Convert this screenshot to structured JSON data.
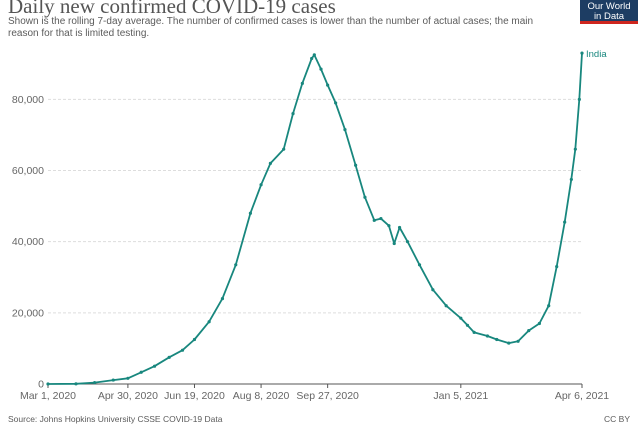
{
  "header": {
    "title": "Daily new confirmed COVID-19 cases",
    "subtitle": "Shown is the rolling 7-day average. The number of confirmed cases is lower than the number of actual cases; the main reason for that is limited testing."
  },
  "logo": {
    "line1": "Our World",
    "line2": "in Data"
  },
  "footer": {
    "source": "Source: Johns Hopkins University CSSE COVID-19 Data",
    "license": "CC BY"
  },
  "colors": {
    "series": "#18877e",
    "grid": "#dddddd",
    "axis": "#555555",
    "text": "#666666"
  },
  "chart_data": {
    "type": "line",
    "title": "Daily new confirmed COVID-19 cases",
    "xlabel": "",
    "ylabel": "",
    "x_start": "2020-03-01",
    "x_end": "2021-04-06",
    "ylim": [
      0,
      95000
    ],
    "y_ticks": [
      0,
      20000,
      40000,
      60000,
      80000
    ],
    "y_tick_labels": [
      "0",
      "20,000",
      "40,000",
      "60,000",
      "80,000"
    ],
    "x_ticks": [
      "2020-03-01",
      "2020-04-30",
      "2020-06-19",
      "2020-08-08",
      "2020-09-27",
      "2021-01-05",
      "2021-04-06"
    ],
    "x_tick_labels": [
      "Mar 1, 2020",
      "Apr 30, 2020",
      "Jun 19, 2020",
      "Aug 8, 2020",
      "Sep 27, 2020",
      "Jan 5, 2021",
      "Apr 6, 2021"
    ],
    "grid": "horizontal dashed",
    "series": [
      {
        "name": "India",
        "points": [
          [
            "2020-03-01",
            0
          ],
          [
            "2020-03-22",
            50
          ],
          [
            "2020-04-05",
            400
          ],
          [
            "2020-04-19",
            1100
          ],
          [
            "2020-04-30",
            1600
          ],
          [
            "2020-05-10",
            3300
          ],
          [
            "2020-05-20",
            5000
          ],
          [
            "2020-05-31",
            7500
          ],
          [
            "2020-06-10",
            9500
          ],
          [
            "2020-06-19",
            12500
          ],
          [
            "2020-06-30",
            17500
          ],
          [
            "2020-07-10",
            24000
          ],
          [
            "2020-07-20",
            33500
          ],
          [
            "2020-07-31",
            48000
          ],
          [
            "2020-08-08",
            56000
          ],
          [
            "2020-08-15",
            62000
          ],
          [
            "2020-08-25",
            66000
          ],
          [
            "2020-09-01",
            76000
          ],
          [
            "2020-09-08",
            84500
          ],
          [
            "2020-09-15",
            91500
          ],
          [
            "2020-09-17",
            92500
          ],
          [
            "2020-09-22",
            88500
          ],
          [
            "2020-09-27",
            84000
          ],
          [
            "2020-10-03",
            79000
          ],
          [
            "2020-10-10",
            71500
          ],
          [
            "2020-10-18",
            61500
          ],
          [
            "2020-10-25",
            52500
          ],
          [
            "2020-11-01",
            46000
          ],
          [
            "2020-11-06",
            46500
          ],
          [
            "2020-11-12",
            44500
          ],
          [
            "2020-11-16",
            39500
          ],
          [
            "2020-11-20",
            44000
          ],
          [
            "2020-11-26",
            40000
          ],
          [
            "2020-12-05",
            33500
          ],
          [
            "2020-12-15",
            26500
          ],
          [
            "2020-12-25",
            22000
          ],
          [
            "2021-01-05",
            18500
          ],
          [
            "2021-01-10",
            16500
          ],
          [
            "2021-01-15",
            14500
          ],
          [
            "2021-01-25",
            13500
          ],
          [
            "2021-02-01",
            12500
          ],
          [
            "2021-02-10",
            11500
          ],
          [
            "2021-02-17",
            12000
          ],
          [
            "2021-02-25",
            15000
          ],
          [
            "2021-03-05",
            17000
          ],
          [
            "2021-03-12",
            22000
          ],
          [
            "2021-03-18",
            33000
          ],
          [
            "2021-03-24",
            45500
          ],
          [
            "2021-03-29",
            57500
          ],
          [
            "2021-04-01",
            66000
          ],
          [
            "2021-04-04",
            80000
          ],
          [
            "2021-04-06",
            93000
          ]
        ]
      }
    ]
  }
}
